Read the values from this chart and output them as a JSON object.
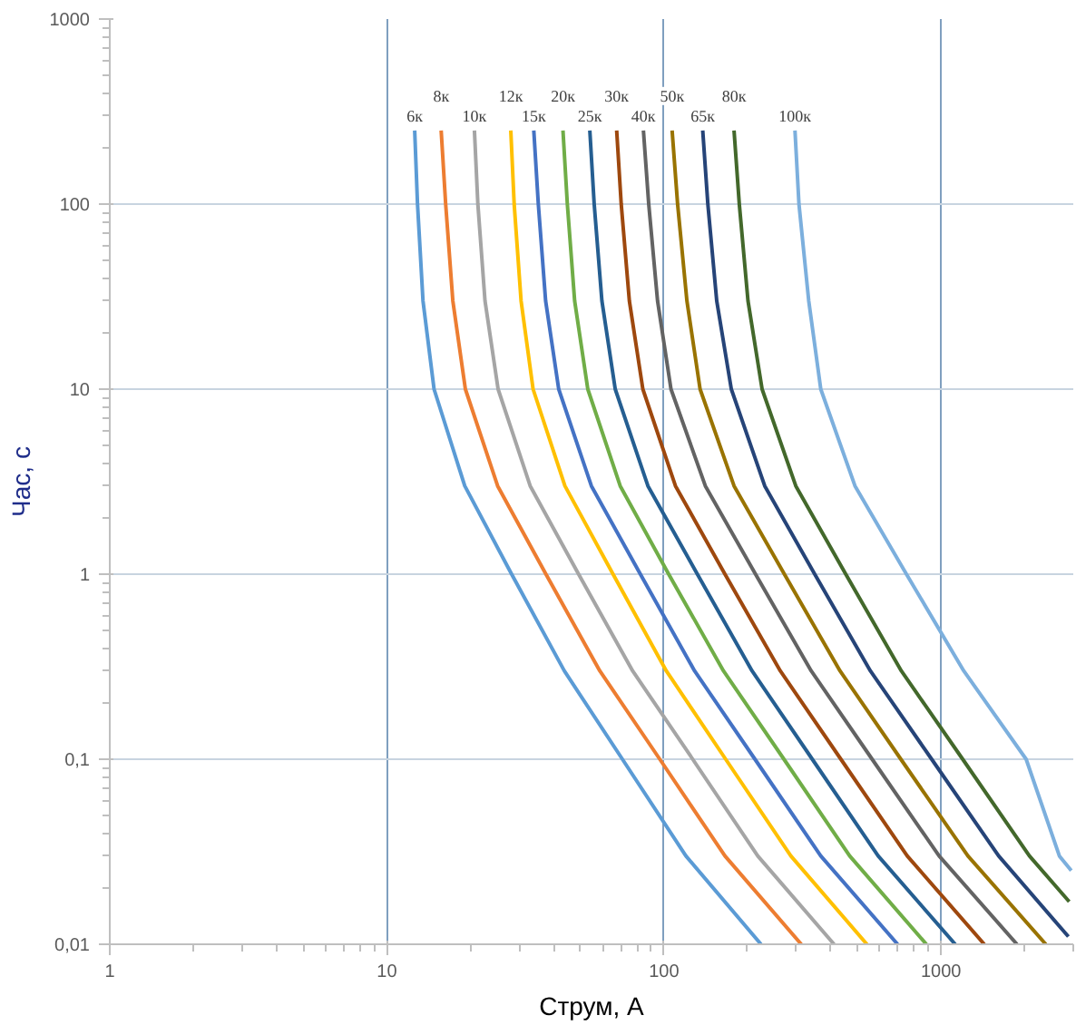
{
  "chart_data": {
    "type": "line",
    "xlabel": "Струм, А",
    "ylabel": "Час, с",
    "log": "xy",
    "grid": true,
    "legend": false,
    "xlim": [
      1,
      3000
    ],
    "ylim": [
      0.01,
      1000
    ],
    "xticks": [
      1,
      10,
      100,
      1000
    ],
    "yticks": [
      {
        "value": 0.01,
        "label": "0,01"
      },
      {
        "value": 0.1,
        "label": "0,1"
      },
      1,
      10,
      100,
      1000
    ],
    "series": [
      {
        "name": "6к",
        "color": "#5b9bd5",
        "x": [
          12.6,
          12.9,
          13.5,
          14.8,
          19.1,
          28.2,
          43.7,
          70.8,
          120,
          224
        ],
        "values": [
          250,
          100,
          30,
          10,
          3,
          1,
          0.3,
          0.1,
          0.03,
          0.01
        ]
      },
      {
        "name": "8к",
        "color": "#ed7d31",
        "x": [
          15.7,
          16.3,
          17.3,
          19.2,
          25.1,
          37.5,
          58.7,
          96.6,
          166,
          313
        ],
        "values": [
          250,
          100,
          30,
          10,
          3,
          1,
          0.3,
          0.1,
          0.03,
          0.01
        ]
      },
      {
        "name": "10к",
        "color": "#a5a5a5",
        "x": [
          20.7,
          21.3,
          22.6,
          25.2,
          32.9,
          49.2,
          77.1,
          127,
          218,
          411
        ],
        "values": [
          250,
          100,
          30,
          10,
          3,
          1,
          0.3,
          0.1,
          0.03,
          0.01
        ]
      },
      {
        "name": "12к",
        "color": "#ffc000",
        "x": [
          28,
          28.8,
          30.5,
          33.7,
          43.9,
          65.5,
          102,
          167,
          287,
          540
        ],
        "values": [
          250,
          100,
          30,
          10,
          3,
          1,
          0.3,
          0.1,
          0.03,
          0.01
        ]
      },
      {
        "name": "15к",
        "color": "#4472c4",
        "x": [
          33.9,
          35.2,
          37.4,
          41.7,
          54.7,
          82.2,
          129,
          213,
          368,
          697
        ],
        "values": [
          250,
          100,
          30,
          10,
          3,
          1,
          0.3,
          0.1,
          0.03,
          0.01
        ]
      },
      {
        "name": "20к",
        "color": "#70ad47",
        "x": [
          43.2,
          44.8,
          47.6,
          53.1,
          69.5,
          104,
          164,
          271,
          468,
          885
        ],
        "values": [
          250,
          100,
          30,
          10,
          3,
          1,
          0.3,
          0.1,
          0.03,
          0.01
        ]
      },
      {
        "name": "25к",
        "color": "#255e91",
        "x": [
          54,
          56,
          59.7,
          66.7,
          87.5,
          132,
          208,
          343,
          593,
          1125
        ],
        "values": [
          250,
          100,
          30,
          10,
          3,
          1,
          0.3,
          0.1,
          0.03,
          0.01
        ]
      },
      {
        "name": "30к",
        "color": "#9e480e",
        "x": [
          67.5,
          70.1,
          75,
          83.9,
          110,
          166,
          263,
          435,
          755,
          1432
        ],
        "values": [
          250,
          100,
          30,
          10,
          3,
          1,
          0.3,
          0.1,
          0.03,
          0.01
        ]
      },
      {
        "name": "40к",
        "color": "#636363",
        "x": [
          84.3,
          88.1,
          94.8,
          106,
          141,
          214,
          340,
          564,
          984,
          1879
        ],
        "values": [
          250,
          100,
          30,
          10,
          3,
          1,
          0.3,
          0.1,
          0.03,
          0.01
        ]
      },
      {
        "name": "50к",
        "color": "#997300",
        "x": [
          107,
          112,
          121,
          135,
          179,
          272,
          432,
          716,
          1250,
          2388
        ],
        "values": [
          250,
          100,
          30,
          10,
          3,
          1,
          0.3,
          0.1,
          0.03,
          0.01
        ]
      },
      {
        "name": "65к",
        "color": "#264478",
        "x": [
          138,
          144,
          155,
          175,
          231,
          350,
          556,
          925,
          1614,
          2880
        ],
        "values": [
          250,
          100,
          30,
          10,
          3,
          1,
          0.3,
          0.1,
          0.03,
          0.011
        ]
      },
      {
        "name": "80к",
        "color": "#43682b",
        "x": [
          179,
          187,
          201,
          226,
          299,
          453,
          719,
          1197,
          2084,
          2900
        ],
        "values": [
          250,
          100,
          30,
          10,
          3,
          1,
          0.3,
          0.1,
          0.03,
          0.017
        ]
      },
      {
        "name": "100к",
        "color": "#7cafdd",
        "x": [
          297,
          307,
          333,
          368,
          489,
          750,
          1208,
          2028,
          2673,
          2950
        ],
        "values": [
          250,
          100,
          30,
          10,
          3,
          1,
          0.3,
          0.1,
          0.03,
          0.025
        ]
      }
    ]
  }
}
